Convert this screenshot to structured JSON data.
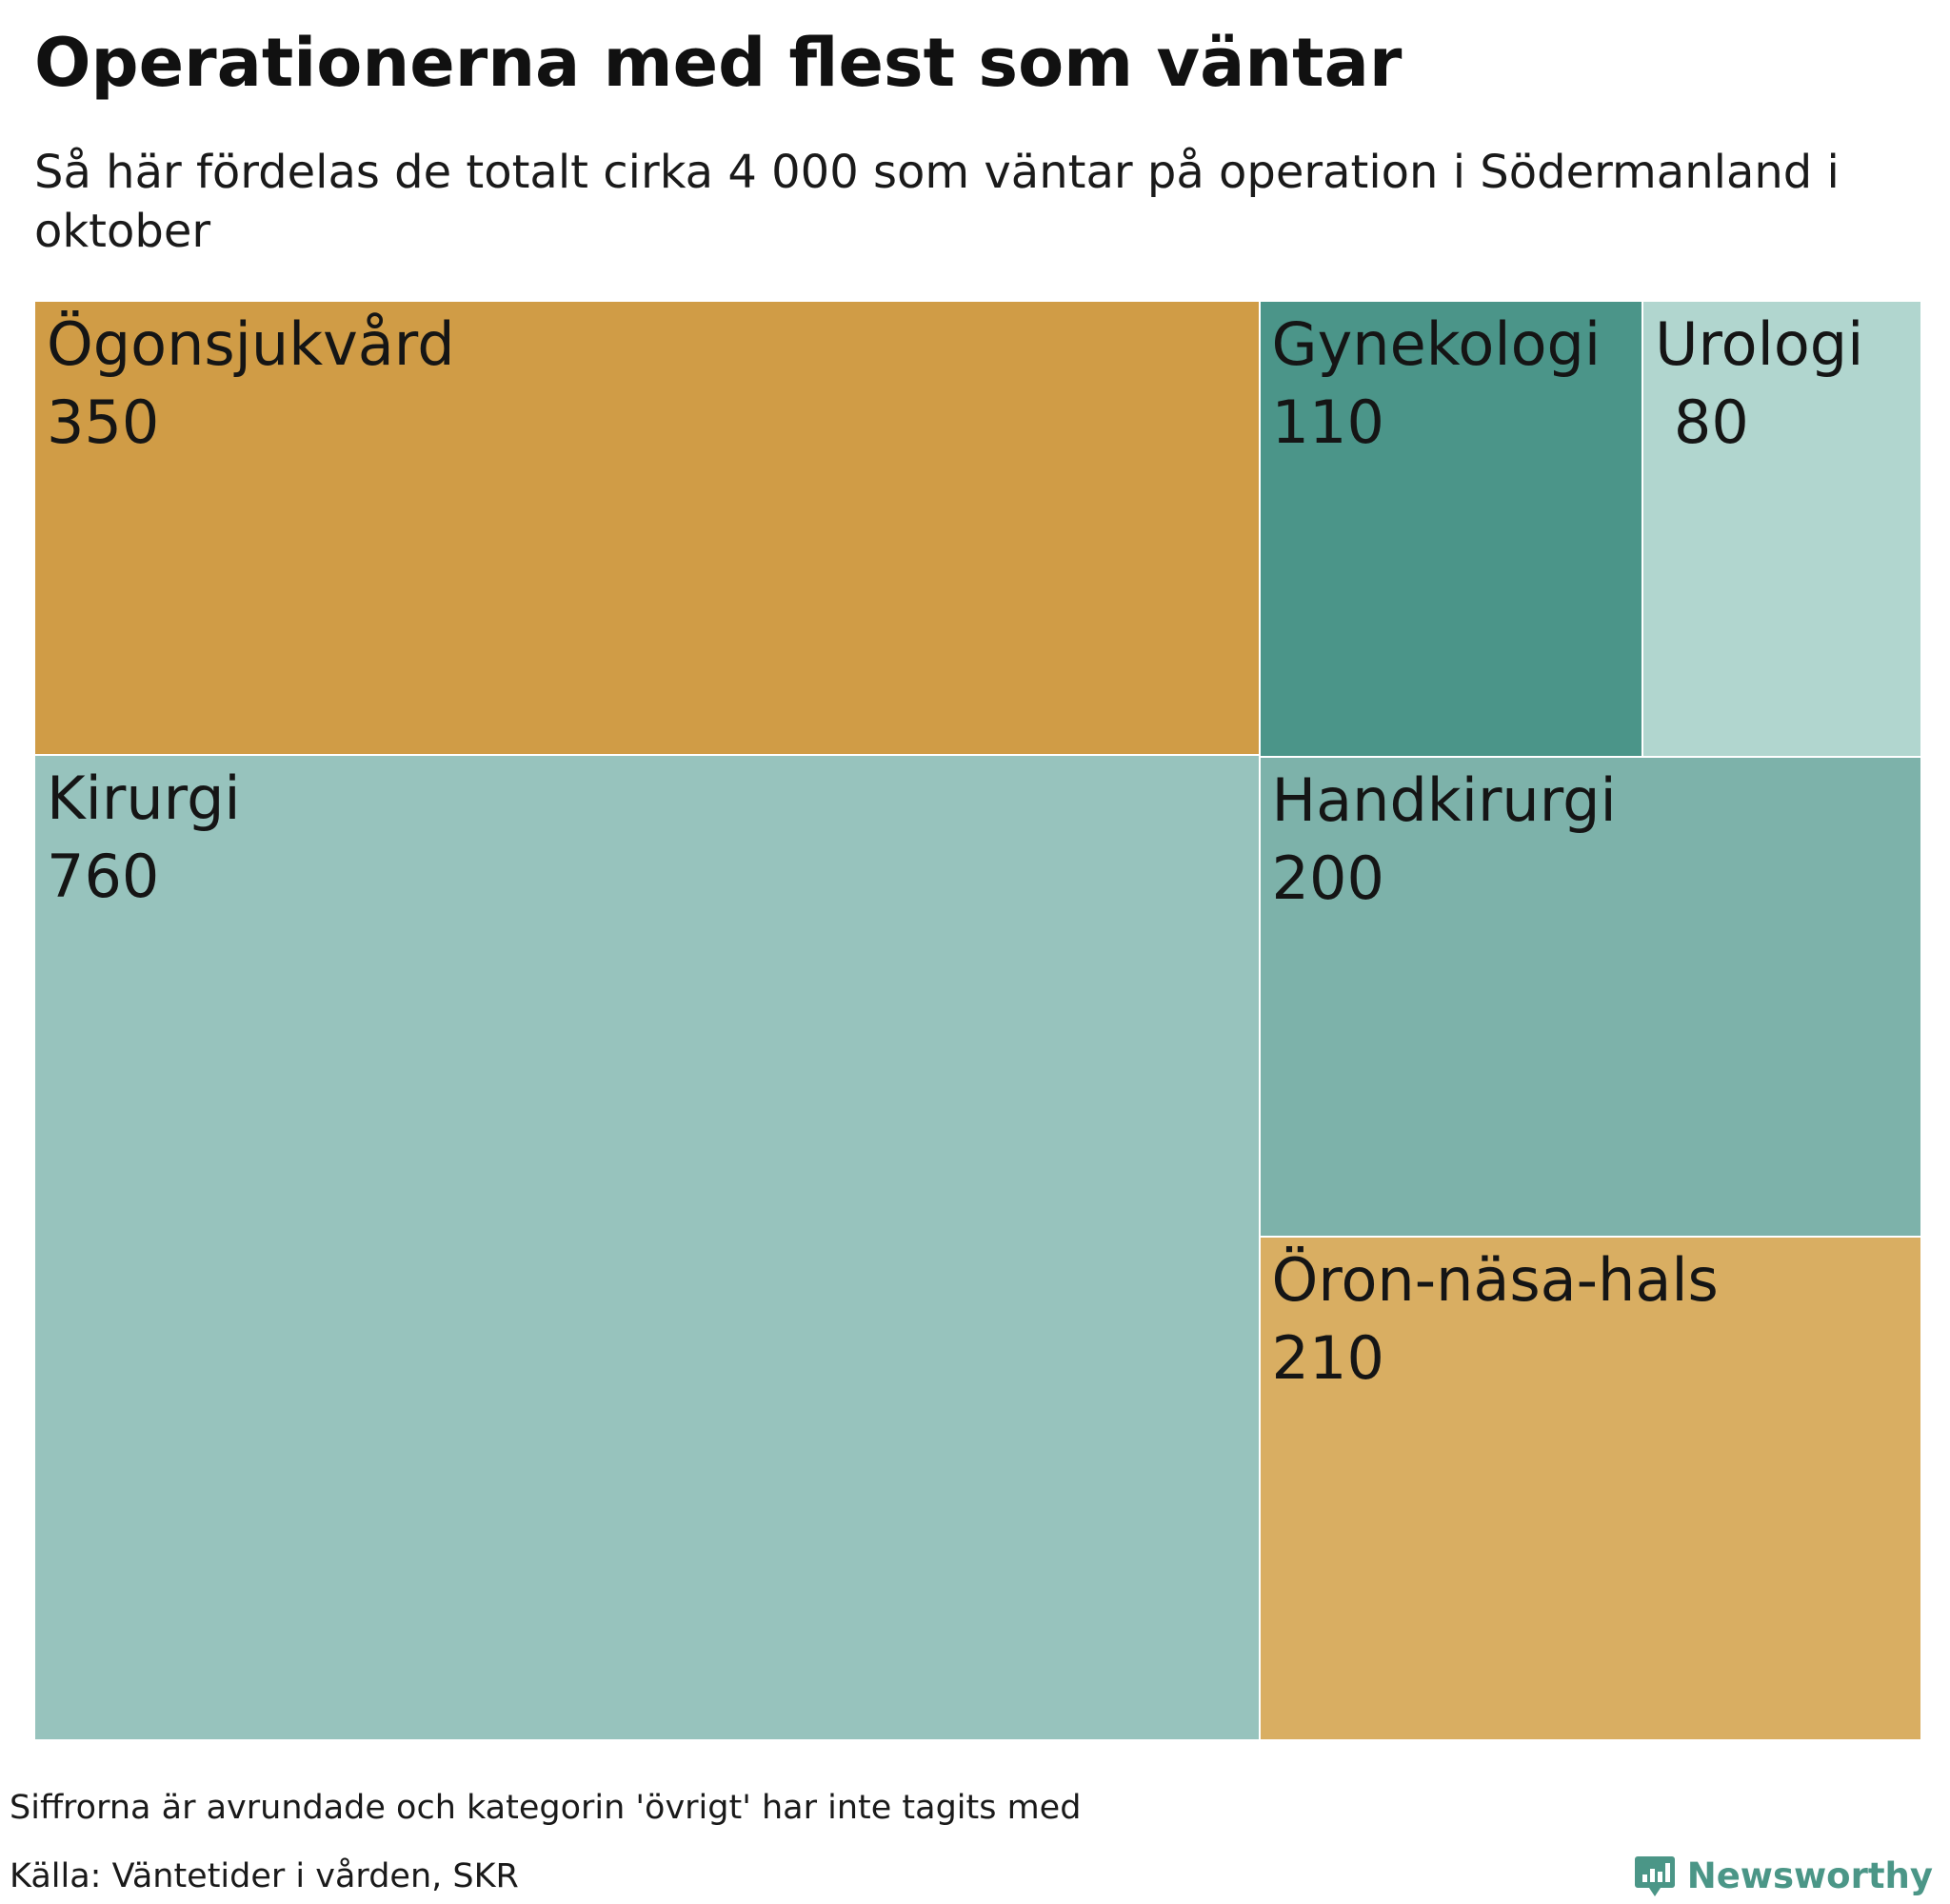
{
  "title": "Operationerna med flest som väntar",
  "subtitle": "Så här fördelas de totalt cirka 4 000 som väntar på operation i Södermanland i oktober",
  "chart_data": {
    "type": "treemap",
    "title": "Operationerna med flest som väntar",
    "subtitle": "Så här fördelas de totalt cirka 4 000 som väntar på operation i Södermanland i oktober",
    "unit": "",
    "items": [
      {
        "name": "Ögonsjukvård",
        "value": 350,
        "value_label": "350",
        "color": "#d09c46"
      },
      {
        "name": "Kirurgi",
        "value": 760,
        "value_label": "760",
        "color": "#97c3bd"
      },
      {
        "name": "Gynekologi",
        "value": 110,
        "value_label": "110",
        "color": "#4b9589"
      },
      {
        "name": "Urologi",
        "value": 80,
        "value_label": " 80",
        "color": "#b1d6cf"
      },
      {
        "name": "Handkirurgi",
        "value": 200,
        "value_label": "200",
        "color": "#7db2aa"
      },
      {
        "name": "Öron-näsa-hals",
        "value": 210,
        "value_label": "210",
        "color": "#d9ae62"
      }
    ]
  },
  "footer": {
    "note": "Siffrorna är avrundade och kategorin 'övrigt' har inte tagits med",
    "source": "Källa: Väntetider i vården, SKR",
    "brand": "Newsworthy",
    "brand_color": "#4b9687"
  }
}
